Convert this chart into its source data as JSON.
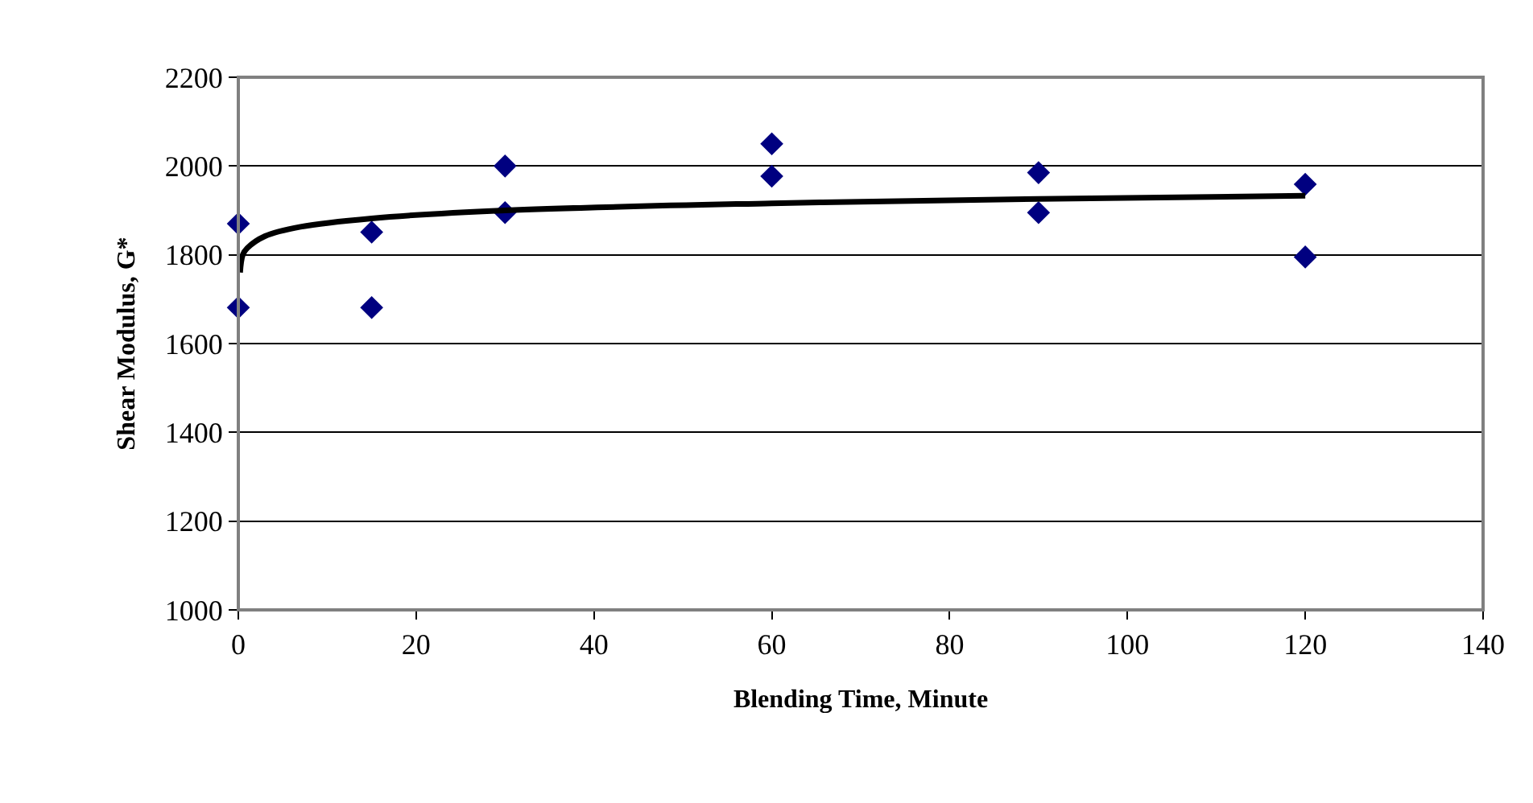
{
  "chart_data": {
    "type": "scatter",
    "xlabel": "Blending Time, Minute",
    "ylabel": "Shear Modulus, G*",
    "series": [
      {
        "color": "#000080",
        "marker": "diamond",
        "x": [
          0,
          0,
          15,
          15,
          30,
          30,
          60,
          60,
          90,
          90,
          120,
          120
        ],
        "values": [
          1870,
          1681,
          1851,
          1681,
          2000,
          1895,
          2050,
          1977,
          1985,
          1895,
          1959,
          1795
        ]
      },
      {
        "type": "line",
        "color": "#000000",
        "marker": "none",
        "line_style": "solid",
        "x": [
          0.2,
          0.5,
          1,
          3,
          7,
          15,
          30,
          60,
          90,
          120
        ],
        "values": [
          1760,
          1800,
          1815,
          1842,
          1863,
          1882,
          1900,
          1916,
          1926,
          1933
        ]
      }
    ],
    "xlim": [
      0,
      140
    ],
    "xticks": [
      0,
      20,
      40,
      60,
      80,
      100,
      120,
      140
    ],
    "ylim": [
      1000,
      2200
    ],
    "yticks": [
      1000,
      1200,
      1400,
      1600,
      1800,
      2000,
      2200
    ],
    "grid": "y",
    "legend": false
  }
}
